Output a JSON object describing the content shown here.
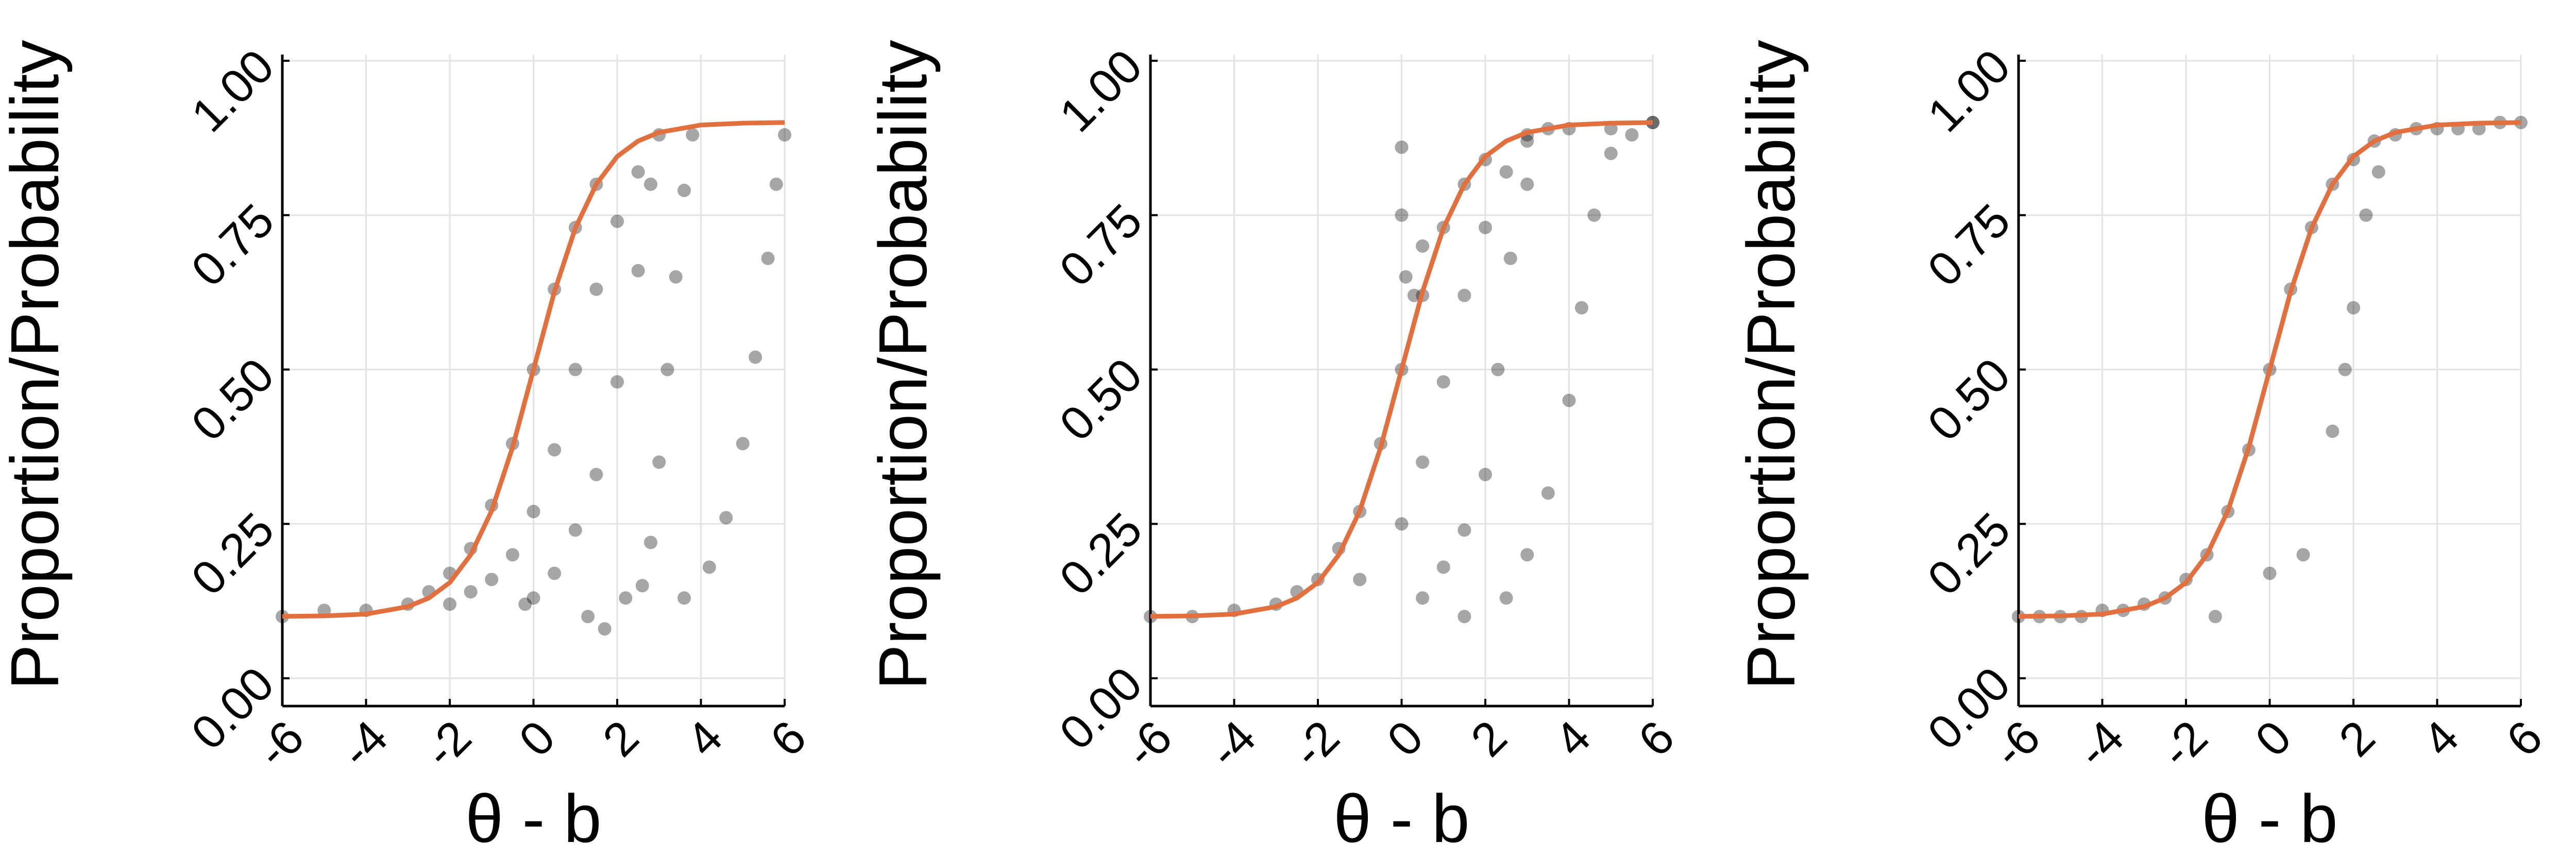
{
  "chart_data": [
    {
      "type": "scatter",
      "xlabel": "θ -  b",
      "ylabel": "Proportion/Probability",
      "xlim": [
        -6,
        6
      ],
      "ylim": [
        -0.045,
        1.01
      ],
      "xticks": [
        -6,
        -4,
        -2,
        0,
        2,
        4,
        6
      ],
      "yticks": [
        {
          "value": 0,
          "label": "0.00"
        },
        {
          "value": 0.25,
          "label": "0.25"
        },
        {
          "value": 0.5,
          "label": "0.50"
        },
        {
          "value": 0.75,
          "label": "0.75"
        },
        {
          "value": 1,
          "label": "1.00"
        }
      ],
      "grid": true,
      "series": [
        {
          "type": "scatter",
          "color": "#000000",
          "x": [
            -6,
            -5,
            -4,
            -3,
            -2.5,
            -2,
            -1.5,
            -1,
            -0.5,
            0,
            0.5,
            1,
            1.5,
            -2,
            -1.5,
            -1,
            -0.5,
            0,
            0.5,
            1,
            1.5,
            2,
            2.5,
            3,
            0,
            0.5,
            1,
            1.5,
            2,
            2.5,
            2.8,
            -0.2,
            1.3,
            1.7,
            2.2,
            2.6,
            2.8,
            3,
            3.2,
            3.4,
            3.6,
            3.8,
            3.6,
            4.2,
            4.6,
            5,
            5.3,
            5.6,
            5.8,
            6
          ],
          "values": [
            0.1,
            0.11,
            0.11,
            0.12,
            0.14,
            0.17,
            0.21,
            0.28,
            0.38,
            0.5,
            0.63,
            0.73,
            0.8,
            0.12,
            0.14,
            0.16,
            0.2,
            0.27,
            0.37,
            0.5,
            0.63,
            0.74,
            0.82,
            0.88,
            0.13,
            0.17,
            0.24,
            0.33,
            0.48,
            0.66,
            0.8,
            0.12,
            0.1,
            0.08,
            0.13,
            0.15,
            0.22,
            0.35,
            0.5,
            0.65,
            0.79,
            0.88,
            0.13,
            0.18,
            0.26,
            0.38,
            0.52,
            0.68,
            0.8,
            0.88
          ]
        },
        {
          "type": "line",
          "color": "#e2703f",
          "x": [
            -6,
            -5,
            -4,
            -3,
            -2.5,
            -2,
            -1.5,
            -1,
            -0.5,
            0,
            0.5,
            1,
            1.5,
            2,
            2.5,
            3,
            4,
            5,
            6
          ],
          "values": [
            0.1003,
            0.101,
            0.104,
            0.116,
            0.13,
            0.155,
            0.2,
            0.271,
            0.374,
            0.5,
            0.626,
            0.729,
            0.8,
            0.845,
            0.87,
            0.884,
            0.896,
            0.899,
            0.9
          ]
        }
      ]
    },
    {
      "type": "scatter",
      "xlabel": "θ -  b",
      "ylabel": "Proportion/Probability",
      "xlim": [
        -6,
        6
      ],
      "ylim": [
        -0.045,
        1.01
      ],
      "xticks": [
        -6,
        -4,
        -2,
        0,
        2,
        4,
        6
      ],
      "yticks": [
        {
          "value": 0,
          "label": "0.00"
        },
        {
          "value": 0.25,
          "label": "0.25"
        },
        {
          "value": 0.5,
          "label": "0.50"
        },
        {
          "value": 0.75,
          "label": "0.75"
        },
        {
          "value": 1,
          "label": "1.00"
        }
      ],
      "grid": true,
      "series": [
        {
          "type": "scatter",
          "color": "#000000",
          "x": [
            -6,
            -5,
            -4,
            -3,
            -2.5,
            -2,
            -1.5,
            -1,
            -0.5,
            0,
            0.5,
            1,
            1.5,
            2,
            3,
            4,
            5,
            6,
            0,
            0,
            0.1,
            0.3,
            0.5,
            -1,
            0,
            0.5,
            1,
            1.5,
            2,
            2.5,
            3,
            3.5,
            0.5,
            1,
            1.5,
            2,
            2.3,
            2.6,
            3,
            1.5,
            2.5,
            3,
            3.5,
            4,
            4.3,
            4.6,
            5,
            5.5,
            6
          ],
          "values": [
            0.1,
            0.1,
            0.11,
            0.12,
            0.14,
            0.16,
            0.21,
            0.27,
            0.38,
            0.5,
            0.62,
            0.73,
            0.8,
            0.84,
            0.88,
            0.89,
            0.89,
            0.9,
            0.86,
            0.75,
            0.65,
            0.62,
            0.7,
            0.16,
            0.25,
            0.35,
            0.48,
            0.62,
            0.73,
            0.82,
            0.87,
            0.89,
            0.13,
            0.18,
            0.24,
            0.33,
            0.5,
            0.68,
            0.8,
            0.1,
            0.13,
            0.2,
            0.3,
            0.45,
            0.6,
            0.75,
            0.85,
            0.88,
            0.9
          ]
        },
        {
          "type": "line",
          "color": "#e2703f",
          "x": [
            -6,
            -5,
            -4,
            -3,
            -2.5,
            -2,
            -1.5,
            -1,
            -0.5,
            0,
            0.5,
            1,
            1.5,
            2,
            2.5,
            3,
            4,
            5,
            6
          ],
          "values": [
            0.1003,
            0.101,
            0.104,
            0.116,
            0.13,
            0.155,
            0.2,
            0.271,
            0.374,
            0.5,
            0.626,
            0.729,
            0.8,
            0.845,
            0.87,
            0.884,
            0.896,
            0.899,
            0.9
          ]
        }
      ]
    },
    {
      "type": "scatter",
      "xlabel": "θ -  b",
      "ylabel": "Proportion/Probability",
      "xlim": [
        -6,
        6
      ],
      "ylim": [
        -0.045,
        1.01
      ],
      "xticks": [
        -6,
        -4,
        -2,
        0,
        2,
        4,
        6
      ],
      "yticks": [
        {
          "value": 0,
          "label": "0.00"
        },
        {
          "value": 0.25,
          "label": "0.25"
        },
        {
          "value": 0.5,
          "label": "0.50"
        },
        {
          "value": 0.75,
          "label": "0.75"
        },
        {
          "value": 1,
          "label": "1.00"
        }
      ],
      "grid": true,
      "series": [
        {
          "type": "scatter",
          "color": "#000000",
          "x": [
            -6,
            -5.5,
            -5,
            -4.5,
            -4,
            -3.5,
            -3,
            -2.5,
            -2,
            -1.5,
            -1,
            -0.5,
            0,
            0.5,
            1,
            1.5,
            2,
            2.5,
            3,
            3.5,
            4,
            4.5,
            5,
            5.5,
            6,
            0,
            0.8,
            -1.3,
            1.5,
            1.8,
            2,
            2.3,
            2.6
          ],
          "values": [
            0.1,
            0.1,
            0.1,
            0.1,
            0.11,
            0.11,
            0.12,
            0.13,
            0.16,
            0.2,
            0.27,
            0.37,
            0.5,
            0.63,
            0.73,
            0.8,
            0.84,
            0.87,
            0.88,
            0.89,
            0.89,
            0.89,
            0.89,
            0.9,
            0.9,
            0.17,
            0.2,
            0.1,
            0.4,
            0.5,
            0.6,
            0.75,
            0.82
          ]
        },
        {
          "type": "line",
          "color": "#e2703f",
          "x": [
            -6,
            -5,
            -4,
            -3,
            -2.5,
            -2,
            -1.5,
            -1,
            -0.5,
            0,
            0.5,
            1,
            1.5,
            2,
            2.5,
            3,
            4,
            5,
            6
          ],
          "values": [
            0.1003,
            0.101,
            0.104,
            0.116,
            0.13,
            0.155,
            0.2,
            0.271,
            0.374,
            0.5,
            0.626,
            0.729,
            0.8,
            0.845,
            0.87,
            0.884,
            0.896,
            0.899,
            0.9
          ]
        }
      ]
    }
  ]
}
